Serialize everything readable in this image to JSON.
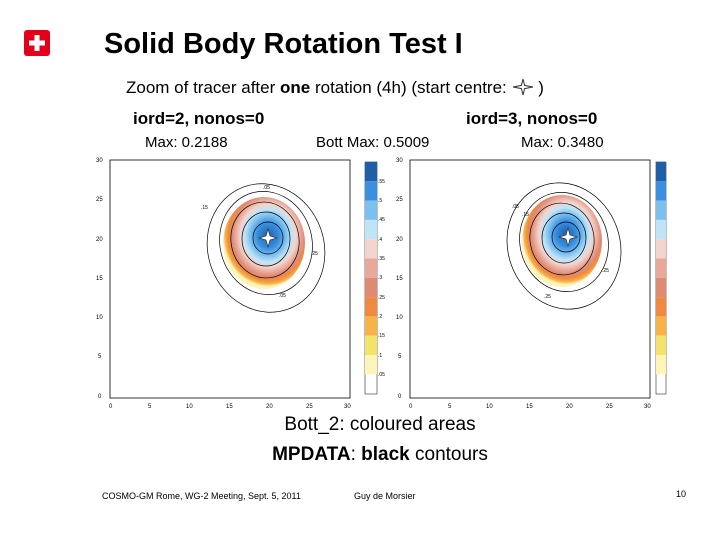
{
  "slide": {
    "title": "Solid Body Rotation Test I",
    "subtitle_pre": "Zoom of tracer after ",
    "subtitle_bold": "one",
    "subtitle_post": " rotation (4h) (start centre:",
    "subtitle_close": ")",
    "left_panel_label": "iord=2, nonos=0",
    "right_panel_label": "iord=3, nonos=0",
    "left_max": "Max: 0.2188",
    "center_max": "Bott Max: 0.5009",
    "right_max": "Max: 0.3480",
    "caption_line1": "Bott_2: coloured areas",
    "caption_line2_bold1": "MPDATA",
    "caption_line2_mid": ": ",
    "caption_line2_bold2": "black",
    "caption_line2_post": " contours",
    "footer_left": "COSMO-GM Rome, WG-2 Meeting, Sept. 5, 2011",
    "footer_center": "Guy de Morsier",
    "page_number": "10"
  },
  "plot": {
    "x_ticks": [
      "0",
      "5",
      "10",
      "15",
      "20",
      "25",
      "30"
    ],
    "y_ticks": [
      "30",
      "25",
      "20",
      "15",
      "10",
      "5",
      "0"
    ],
    "colorbar_labels": [
      ".55",
      ".5",
      ".45",
      ".4",
      ".35",
      ".3",
      ".25",
      ".2",
      ".15",
      ".1",
      ".05"
    ],
    "colorbar_colors": [
      "#1f5fa8",
      "#3a8fe0",
      "#7cc0f0",
      "#bfe4f7",
      "#f3d4cc",
      "#e9a99a",
      "#df8a73",
      "#f08a40",
      "#f7b347",
      "#f4e36b",
      "#fdf5b8",
      "#ffffff"
    ],
    "left_contour_labels": [
      ".05",
      ".15",
      ".25",
      ".05"
    ],
    "right_contour_labels": [
      ".05",
      ".15",
      ".25",
      ".25"
    ],
    "brand_red": "#e2001a",
    "start_marker_icon": "four-point-star-icon"
  }
}
